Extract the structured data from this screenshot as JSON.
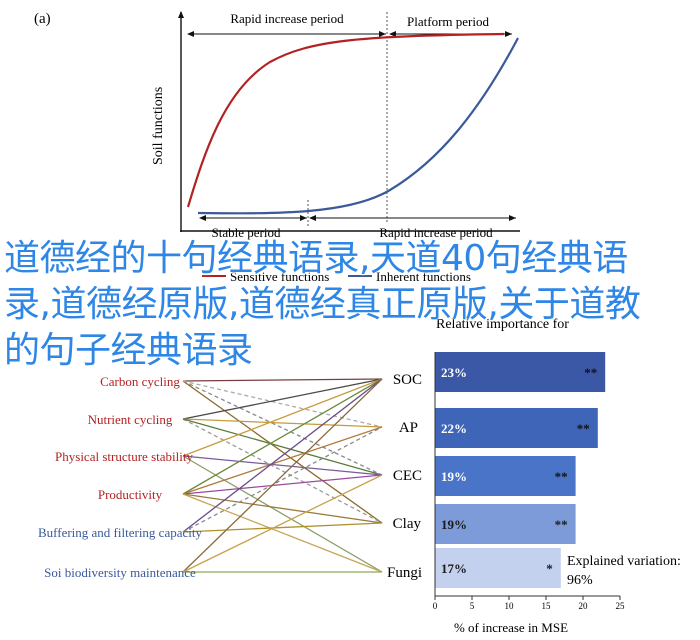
{
  "panel_a": {
    "label": "(a)",
    "ylabel": "Soil functions",
    "top_periods": [
      "Rapid increase period",
      "Platform period"
    ],
    "bottom_periods": [
      "Stable period",
      "Rapid increase period"
    ],
    "legend": [
      "Sensitive functions",
      "Inherent functions"
    ],
    "colors": {
      "sensitive": "#b22222",
      "inherent": "#3a5a99"
    }
  },
  "panel_b": {
    "functions": [
      "Carbon cycling",
      "Nutrient cycling",
      "Physical structure stability",
      "Productivity",
      "Buffering and filtering capacity",
      "Soi biodiversity maintenance"
    ],
    "properties": [
      "SOC",
      "AP",
      "CEC",
      "Clay",
      "Fungi"
    ]
  },
  "chart_data": {
    "type": "bar",
    "title": "Relative importance for",
    "categories": [
      "SOC",
      "AP",
      "CEC",
      "Clay",
      "Fungi"
    ],
    "values": [
      23,
      22,
      19,
      19,
      17
    ],
    "value_labels": [
      "23%",
      "22%",
      "19%",
      "19%",
      "17%"
    ],
    "significance": [
      "**",
      "**",
      "**",
      "**",
      "*"
    ],
    "xlabel": "% of increase in MSE",
    "xlim": [
      0,
      25
    ],
    "xticks": [
      "0",
      "5",
      "10",
      "15",
      "20",
      "25"
    ],
    "explained_variation_label": "Explained variation:",
    "explained_variation_value": "96%",
    "bar_colors": [
      "#3a58a6",
      "#3f65b8",
      "#4a74c8",
      "#7d9bd8",
      "#c3d0ee"
    ]
  },
  "overlay_text": "道德经的十句经典语录,天道40句经典语录,道德经原版,道德经真正原版,关于道教的句子经典语录"
}
